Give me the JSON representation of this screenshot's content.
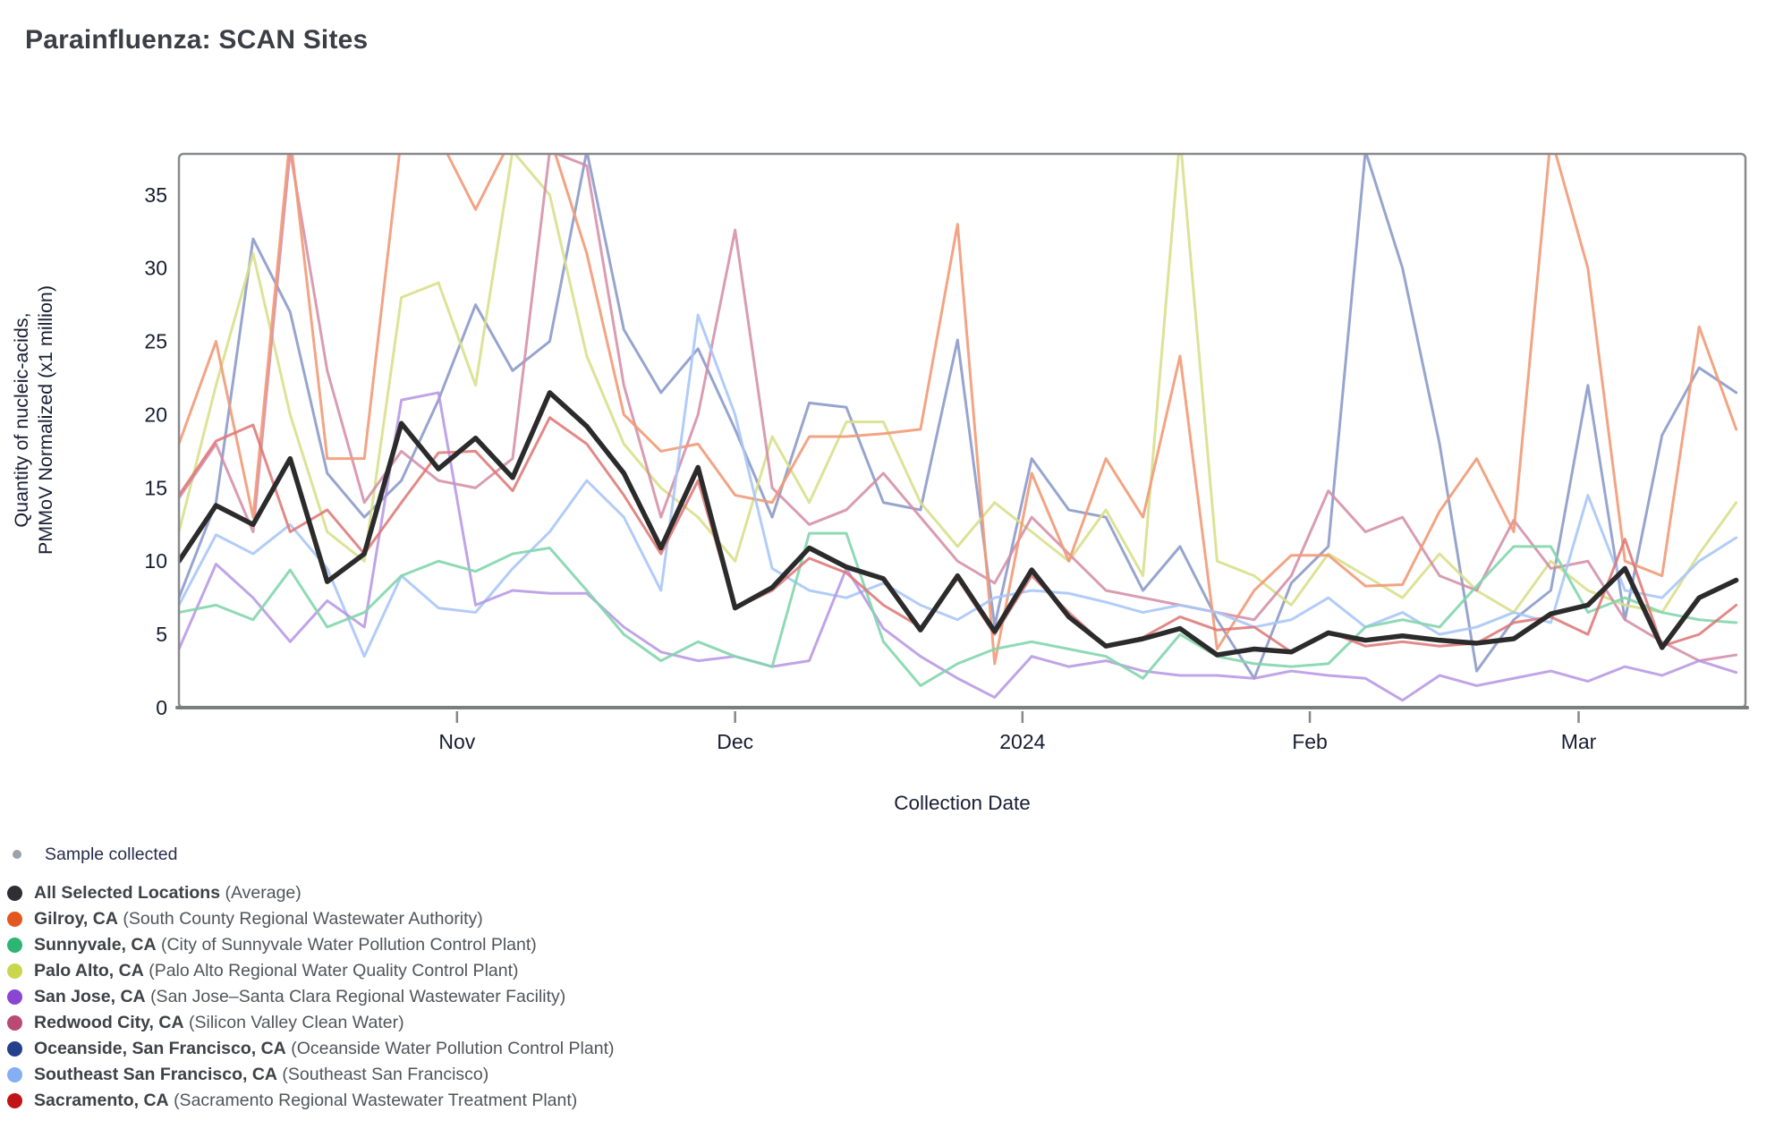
{
  "title": "Parainfluenza: SCAN Sites",
  "axes": {
    "y_label_line1": "Quantity of nucleic-acids,",
    "y_label_line2": "PMMoV Normalized (x1 million)",
    "x_label": "Collection Date",
    "y_ticks": [
      0,
      5,
      10,
      15,
      20,
      25,
      30,
      35
    ]
  },
  "legend": {
    "sample": {
      "label": "Sample collected",
      "color": "#9aa2ab"
    },
    "items": [
      {
        "key": "average",
        "name": "All Selected Locations",
        "detail": "(Average)",
        "color": "#2f2f33"
      },
      {
        "key": "gilroy",
        "name": "Gilroy, CA",
        "detail": "(South County Regional Wastewater Authority)",
        "color": "#e2581f"
      },
      {
        "key": "sunnyvale",
        "name": "Sunnyvale, CA",
        "detail": "(City of Sunnyvale Water Pollution Control Plant)",
        "color": "#2cb573"
      },
      {
        "key": "palo_alto",
        "name": "Palo Alto, CA",
        "detail": "(Palo Alto Regional Water Quality Control Plant)",
        "color": "#c9d74d"
      },
      {
        "key": "san_jose",
        "name": "San Jose, CA",
        "detail": "(San Jose–Santa Clara Regional Wastewater Facility)",
        "color": "#8a46d2"
      },
      {
        "key": "redwood_city",
        "name": "Redwood City, CA",
        "detail": "(Silicon Valley Clean Water)",
        "color": "#ba4a73"
      },
      {
        "key": "oceanside",
        "name": "Oceanside, San Francisco, CA",
        "detail": "(Oceanside Water Pollution Control Plant)",
        "color": "#233f8d"
      },
      {
        "key": "southeast_sf",
        "name": "Southeast San Francisco, CA",
        "detail": "(Southeast San Francisco)",
        "color": "#86aef2"
      },
      {
        "key": "sacramento",
        "name": "Sacramento, CA",
        "detail": "(Sacramento Regional Wastewater Treatment Plant)",
        "color": "#c21318"
      }
    ]
  },
  "chart_data": {
    "type": "line",
    "title": "Parainfluenza: SCAN Sites",
    "xlabel": "Collection Date",
    "ylabel": "Quantity of nucleic-acids, PMMoV Normalized (x1 million)",
    "ylim": [
      0,
      37.8
    ],
    "grid": false,
    "legend_position": "bottom-left",
    "x_unit": "days (day 0 = approx Oct 2, 2023; values estimated from plot)",
    "x": [
      0,
      4,
      8,
      12,
      16,
      20,
      24,
      28,
      32,
      36,
      40,
      44,
      48,
      52,
      56,
      60,
      64,
      68,
      72,
      76,
      80,
      84,
      88,
      92,
      96,
      100,
      104,
      108,
      112,
      116,
      120,
      124,
      128,
      132,
      136,
      140,
      144,
      148,
      152,
      156,
      160,
      164,
      168
    ],
    "x_axis_ticks": [
      {
        "label": "Nov",
        "day": 30
      },
      {
        "label": "Dec",
        "day": 60
      },
      {
        "label": "2024",
        "day": 91
      },
      {
        "label": "Feb",
        "day": 122
      },
      {
        "label": "Mar",
        "day": 151
      }
    ],
    "clip_note": "values above 37.8 run off the top of the plot (clipped)",
    "series": [
      {
        "key": "oceanside",
        "name": "Oceanside, San Francisco, CA",
        "line_color": "#8595c5",
        "width": 3,
        "opacity": 0.85,
        "values": [
          7.5,
          14,
          32,
          27,
          16,
          13,
          15.5,
          21,
          27.5,
          23,
          25,
          38,
          25.8,
          21.5,
          24.5,
          19,
          13,
          20.8,
          20.5,
          14,
          13.5,
          25.1,
          5.6,
          17,
          13.5,
          13,
          8,
          11,
          6,
          2,
          8.5,
          11,
          38,
          30,
          18,
          2.5,
          6,
          8,
          22,
          6,
          18.6,
          23.2,
          21.5
        ]
      },
      {
        "key": "palo_alto",
        "name": "Palo Alto, CA",
        "line_color": "#d8e08b",
        "width": 3,
        "opacity": 0.9,
        "values": [
          12,
          22,
          31,
          20,
          12,
          10,
          28,
          29,
          22,
          38,
          35,
          24,
          18,
          15,
          13,
          10,
          18.5,
          14,
          19.5,
          19.5,
          14,
          11,
          14,
          12,
          10,
          13.5,
          9,
          39,
          10,
          9,
          7,
          10.5,
          9,
          7.5,
          10.5,
          8,
          6.5,
          10,
          8,
          7,
          6.5,
          10.5,
          14
        ]
      },
      {
        "key": "redwood_city",
        "name": "Redwood City, CA",
        "line_color": "#d28ba4",
        "width": 3,
        "opacity": 0.85,
        "values": [
          14.3,
          18,
          12,
          38,
          23,
          14,
          17.5,
          15.5,
          15,
          17,
          38,
          37,
          22,
          13,
          20,
          32.6,
          15,
          12.5,
          13.5,
          16,
          13,
          10,
          8.5,
          13,
          10.5,
          8,
          7.5,
          7,
          6.5,
          6,
          9,
          14.8,
          12,
          13,
          9,
          8,
          12.8,
          9.5,
          10,
          6,
          4.5,
          3.2,
          3.6
        ]
      },
      {
        "key": "gilroy",
        "name": "Gilroy, CA",
        "line_color": "#f19a77",
        "width": 3,
        "opacity": 0.9,
        "values": [
          18,
          25,
          13,
          39,
          17,
          17,
          39,
          39,
          34,
          39,
          39,
          31,
          20,
          17.5,
          18,
          14.5,
          14,
          18.5,
          18.5,
          18.7,
          19,
          33,
          3,
          16,
          10,
          17,
          13,
          24,
          4,
          8,
          10.4,
          10.4,
          8.3,
          8.4,
          13.4,
          17,
          12,
          39,
          30,
          10,
          9,
          26,
          19
        ]
      },
      {
        "key": "southeast_sf",
        "name": "Southeast San Francisco, CA",
        "line_color": "#a9c7f7",
        "width": 3,
        "opacity": 0.9,
        "values": [
          7,
          11.8,
          10.5,
          12.5,
          9.5,
          3.5,
          9,
          6.8,
          6.5,
          9.5,
          12,
          15.5,
          13,
          8,
          26.8,
          20,
          9.5,
          8,
          7.5,
          8.5,
          7,
          6,
          7.5,
          8,
          7.8,
          7.2,
          6.5,
          7,
          6.5,
          5.5,
          6,
          7.5,
          5.5,
          6.5,
          5,
          5.5,
          6.5,
          5.8,
          14.5,
          8,
          7.5,
          10,
          11.6
        ]
      },
      {
        "key": "san_jose",
        "name": "San Jose, CA",
        "line_color": "#b594e3",
        "width": 3,
        "opacity": 0.85,
        "values": [
          4,
          9.8,
          7.5,
          4.5,
          7.3,
          5.5,
          21,
          21.5,
          7,
          8,
          7.8,
          7.8,
          5.5,
          3.8,
          3.2,
          3.5,
          2.8,
          3.2,
          9.5,
          5.4,
          3.5,
          2,
          0.7,
          3.5,
          2.8,
          3.2,
          2.5,
          2.2,
          2.2,
          2,
          2.5,
          2.2,
          2,
          0.5,
          2.2,
          1.5,
          2,
          2.5,
          1.8,
          2.8,
          2.2,
          3.2,
          2.4
        ]
      },
      {
        "key": "sunnyvale",
        "name": "Sunnyvale, CA",
        "line_color": "#82d6ac",
        "width": 3,
        "opacity": 0.9,
        "values": [
          6.5,
          7,
          6,
          9.4,
          5.5,
          6.5,
          9,
          10,
          9.3,
          10.5,
          10.9,
          8,
          5,
          3.2,
          4.5,
          3.5,
          2.8,
          11.9,
          11.9,
          4.5,
          1.5,
          3,
          4,
          4.5,
          4,
          3.5,
          2,
          5,
          3.5,
          3,
          2.8,
          3,
          5.5,
          6,
          5.5,
          8.3,
          11,
          11,
          6.5,
          7.5,
          6.5,
          6,
          5.8
        ]
      },
      {
        "key": "sacramento",
        "name": "Sacramento, CA",
        "line_color": "#dd7473",
        "width": 3,
        "opacity": 0.85,
        "values": [
          14.5,
          18.2,
          19.3,
          12,
          13.5,
          10.5,
          14,
          17.4,
          17.5,
          14.8,
          19.8,
          18,
          14.5,
          10.5,
          15.5,
          6.8,
          8,
          10.2,
          9.2,
          7,
          5.5,
          8.8,
          5,
          9,
          6.5,
          4.2,
          4.8,
          6.2,
          5.3,
          5.5,
          3.8,
          5.2,
          4.2,
          4.5,
          4.2,
          4.4,
          5.8,
          6.2,
          5,
          11.5,
          4.2,
          5,
          7
        ]
      },
      {
        "key": "average",
        "name": "All Selected Locations (Average)",
        "line_color": "#2b2b2b",
        "width": 5.5,
        "opacity": 1,
        "values": [
          10,
          13.8,
          12.5,
          17,
          8.6,
          10.5,
          19.4,
          16.3,
          18.4,
          15.7,
          21.5,
          19.2,
          16,
          10.9,
          16.4,
          6.8,
          8.2,
          10.9,
          9.6,
          8.8,
          5.3,
          9,
          5.2,
          9.4,
          6.2,
          4.2,
          4.7,
          5.4,
          3.6,
          4,
          3.8,
          5.1,
          4.6,
          4.9,
          4.6,
          4.4,
          4.7,
          6.4,
          7,
          9.5,
          4.1,
          7.5,
          8.7
        ]
      }
    ]
  }
}
